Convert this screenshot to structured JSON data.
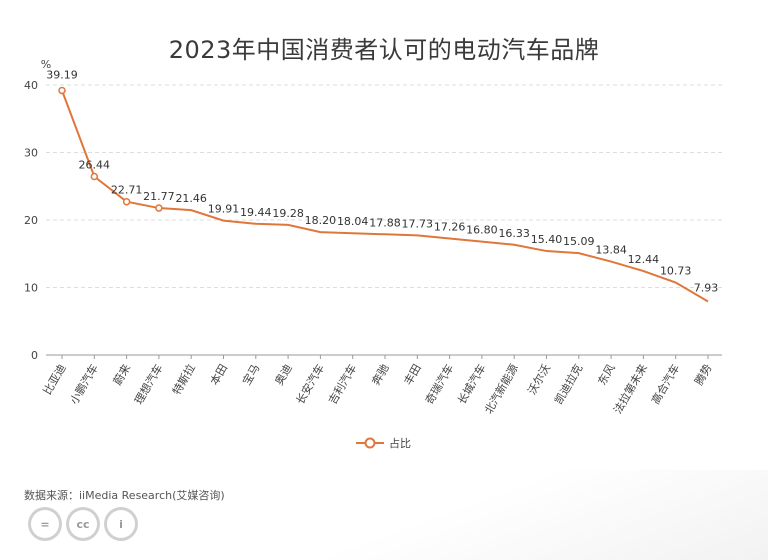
{
  "chart_data": {
    "type": "line",
    "title": "2023年中国消费者认可的电动汽车品牌",
    "ylabel": "%",
    "xlabel": "",
    "ylim": [
      0,
      40
    ],
    "yticks": [
      0,
      10,
      20,
      30,
      40
    ],
    "grid": true,
    "legend_position": "bottom",
    "categories": [
      "比亚迪",
      "小鹏汽车",
      "蔚来",
      "理想汽车",
      "特斯拉",
      "本田",
      "宝马",
      "奥迪",
      "长安汽车",
      "吉利汽车",
      "奔驰",
      "丰田",
      "奇瑞汽车",
      "长城汽车",
      "北汽新能源",
      "沃尔沃",
      "凯迪拉克",
      "东风",
      "法拉第未来",
      "高合汽车",
      "腾势"
    ],
    "series": [
      {
        "name": "占比",
        "color": "#e0773a",
        "values": [
          39.19,
          26.44,
          22.71,
          21.77,
          21.46,
          19.91,
          19.44,
          19.28,
          18.2,
          18.04,
          17.88,
          17.73,
          17.26,
          16.8,
          16.33,
          15.4,
          15.09,
          13.84,
          12.44,
          10.73,
          7.93
        ],
        "labels": [
          "39.19",
          "26.44",
          "22.71",
          "21.77",
          "21.46",
          "19.91",
          "19.44",
          "19.28",
          "18.20",
          "18.04",
          "17.88",
          "17.73",
          "17.26",
          "16.80",
          "16.33",
          "15.40",
          "15.09",
          "13.84",
          "12.44",
          "10.73",
          "7.93"
        ]
      }
    ]
  },
  "source_text": "数据来源：iiMedia Research(艾媒咨询)",
  "license_icons": [
    "equals-icon",
    "cc-icon",
    "person-icon"
  ],
  "license_icon_text": [
    "=",
    "cc",
    "i"
  ]
}
